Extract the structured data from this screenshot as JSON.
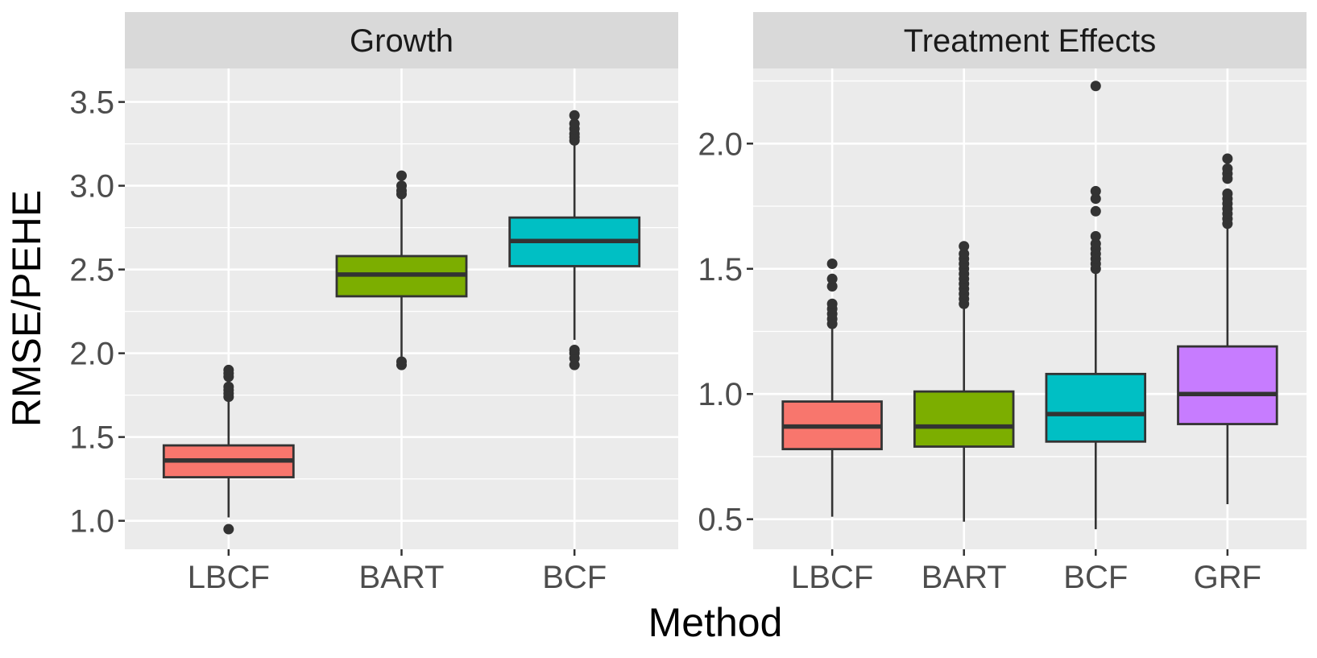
{
  "figure": {
    "ylabel": "RMSE/PEHE",
    "xlabel": "Method"
  },
  "colors": {
    "LBCF": "#F8766D",
    "BART": "#7CAE00",
    "BCF": "#00BFC4",
    "GRF": "#C77CFF",
    "panel_bg": "#EBEBEB",
    "strip_bg": "#D9D9D9",
    "box_line": "#333333",
    "axis_text": "#4D4D4D"
  },
  "chart_data": [
    {
      "type": "boxplot",
      "title": "Growth",
      "xlabel": "Method",
      "ylabel": "RMSE/PEHE",
      "ylim": [
        0.83,
        3.7
      ],
      "yticks": [
        1.0,
        1.5,
        2.0,
        2.5,
        3.0,
        3.5
      ],
      "ytick_labels": [
        "1.0",
        "1.5",
        "2.0",
        "2.5",
        "3.0",
        "3.5"
      ],
      "categories": [
        "LBCF",
        "BART",
        "BCF"
      ],
      "boxes": [
        {
          "method": "LBCF",
          "q1": 1.26,
          "median": 1.36,
          "q3": 1.45,
          "whisker_low": 1.02,
          "whisker_high": 1.72,
          "outliers": [
            0.95,
            1.74,
            1.76,
            1.78,
            1.8,
            1.86,
            1.88,
            1.9
          ]
        },
        {
          "method": "BART",
          "q1": 2.34,
          "median": 2.47,
          "q3": 2.58,
          "whisker_low": 1.98,
          "whisker_high": 2.94,
          "outliers": [
            1.93,
            1.95,
            2.95,
            2.97,
            3.0,
            3.06
          ]
        },
        {
          "method": "BCF",
          "q1": 2.52,
          "median": 2.67,
          "q3": 2.81,
          "whisker_low": 2.08,
          "whisker_high": 3.25,
          "outliers": [
            1.93,
            1.97,
            2.0,
            2.02,
            3.27,
            3.29,
            3.31,
            3.34,
            3.37,
            3.42
          ]
        }
      ]
    },
    {
      "type": "boxplot",
      "title": "Treatment Effects",
      "xlabel": "Method",
      "ylabel": "RMSE/PEHE",
      "ylim": [
        0.38,
        2.3
      ],
      "yticks": [
        0.5,
        1.0,
        1.5,
        2.0
      ],
      "ytick_labels": [
        "0.5",
        "1.0",
        "1.5",
        "2.0"
      ],
      "categories": [
        "LBCF",
        "BART",
        "BCF",
        "GRF"
      ],
      "boxes": [
        {
          "method": "LBCF",
          "q1": 0.78,
          "median": 0.87,
          "q3": 0.97,
          "whisker_low": 0.51,
          "whisker_high": 1.26,
          "outliers": [
            1.28,
            1.3,
            1.32,
            1.34,
            1.36,
            1.43,
            1.46,
            1.52
          ]
        },
        {
          "method": "BART",
          "q1": 0.79,
          "median": 0.87,
          "q3": 1.01,
          "whisker_low": 0.49,
          "whisker_high": 1.34,
          "outliers": [
            1.36,
            1.38,
            1.4,
            1.42,
            1.44,
            1.46,
            1.48,
            1.5,
            1.52,
            1.54,
            1.56,
            1.59
          ]
        },
        {
          "method": "BCF",
          "q1": 0.81,
          "median": 0.92,
          "q3": 1.08,
          "whisker_low": 0.46,
          "whisker_high": 1.48,
          "outliers": [
            1.5,
            1.52,
            1.54,
            1.56,
            1.58,
            1.6,
            1.63,
            1.73,
            1.78,
            1.81,
            2.23
          ]
        },
        {
          "method": "GRF",
          "q1": 0.88,
          "median": 1.0,
          "q3": 1.19,
          "whisker_low": 0.56,
          "whisker_high": 1.66,
          "outliers": [
            1.68,
            1.7,
            1.72,
            1.74,
            1.76,
            1.78,
            1.8,
            1.86,
            1.88,
            1.9,
            1.94
          ]
        }
      ]
    }
  ]
}
